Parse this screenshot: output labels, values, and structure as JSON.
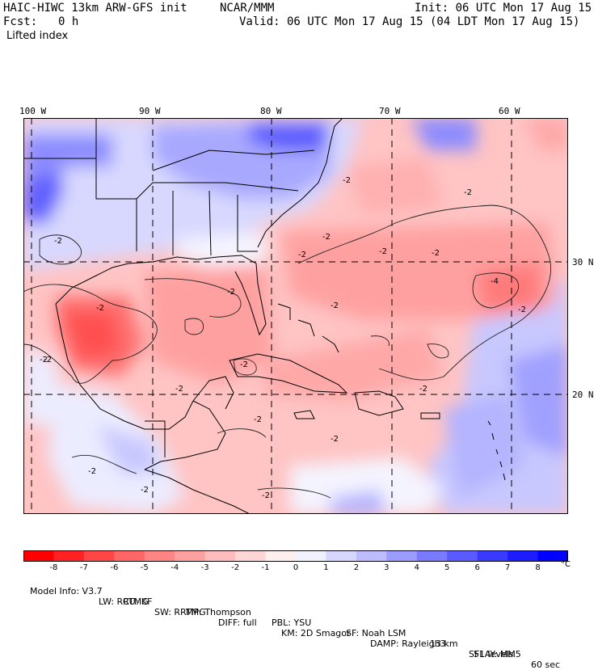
{
  "header": {
    "title_left": "HAIC-HIWC 13km ARW-GFS init",
    "title_center": "NCAR/MMM",
    "init": "Init: 06 UTC Mon 17 Aug 15",
    "fcst_label": "Fcst:",
    "fcst_value": "0 h",
    "valid": "Valid: 06 UTC Mon 17 Aug 15 (04 LDT Mon 17 Aug 15)",
    "field": "Lifted index"
  },
  "map": {
    "lon_labels": [
      "100 W",
      "90 W",
      "80 W",
      "70 W",
      "60 W"
    ],
    "lat_labels": [
      "30 N",
      "20 N"
    ],
    "contour_label": "-2",
    "contour_label_strong": "-4"
  },
  "colorbar": {
    "ticks": [
      "-8",
      "-7",
      "-6",
      "-5",
      "-4",
      "-3",
      "-2",
      "-1",
      "0",
      "1",
      "2",
      "3",
      "4",
      "5",
      "6",
      "7",
      "8"
    ],
    "unit": "°C",
    "colors": [
      "#ff0000",
      "#ff2222",
      "#ff4646",
      "#ff6666",
      "#ff8585",
      "#ffa0a0",
      "#ffbcbc",
      "#ffd6d6",
      "#ffefef",
      "#f0f0ff",
      "#d6d6ff",
      "#bcbcff",
      "#9c9cff",
      "#7a7aff",
      "#5a5aff",
      "#3a3aff",
      "#1c1cff",
      "#0000ff"
    ]
  },
  "model_info": {
    "line1": [
      "Model Info: V3.7",
      "CU: KF",
      "MP: Thompson",
      "PBL: YSU",
      "SF: Noah LSM",
      "13 km",
      "51 levels",
      "60 sec"
    ],
    "line2": [
      "LW: RRTMG",
      "SW: RRTMG",
      "DIFF: full",
      "KM: 2D Smagor",
      "DAMP: Rayleigh3",
      "SFLAY: MM5"
    ]
  }
}
